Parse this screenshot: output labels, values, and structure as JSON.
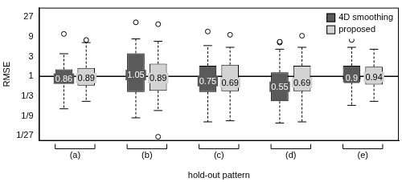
{
  "chart_data": {
    "type": "boxplot",
    "y_label": "RMSE",
    "x_label": "hold-out pattern",
    "categories": [
      "(a)",
      "(b)",
      "(c)",
      "(d)",
      "(e)"
    ],
    "series": [
      {
        "name": "4D smoothing",
        "color": "#5a5a5a",
        "whisker_low": [
          0.165,
          0.1,
          0.08,
          0.075,
          0.2
        ],
        "q1": [
          0.76,
          0.42,
          0.42,
          0.25,
          0.72
        ],
        "median": [
          0.86,
          1.05,
          0.75,
          0.55,
          0.9
        ],
        "q3": [
          1.47,
          3.6,
          1.8,
          1.25,
          1.8
        ],
        "whisker_high": [
          3.5,
          8,
          5.5,
          4.5,
          5
        ],
        "outliers": [
          [
            10.5
          ],
          [
            20
          ],
          [
            12
          ],
          [
            6.5,
            6.8
          ],
          [
            7.5
          ]
        ]
      },
      {
        "name": "proposed",
        "color": "#d3d3d3",
        "whisker_low": [
          0.25,
          0.15,
          0.085,
          0.08,
          0.25
        ],
        "q1": [
          0.6,
          0.45,
          0.44,
          0.44,
          0.63
        ],
        "median": [
          0.89,
          0.89,
          0.69,
          0.69,
          0.94
        ],
        "q3": [
          1.6,
          2,
          1.9,
          1.8,
          1.7
        ],
        "whisker_high": [
          6.5,
          7,
          5,
          5,
          4.5
        ],
        "outliers": [
          [
            7.5
          ],
          [
            18,
            0.035
          ],
          [
            10
          ],
          [
            9.5
          ],
          []
        ]
      }
    ],
    "log": "y",
    "ylim": [
      0.028,
      45
    ],
    "yticks": [
      {
        "value": 0.037037,
        "label": "1/27"
      },
      {
        "value": 0.111111,
        "label": "1/9"
      },
      {
        "value": 0.333333,
        "label": "1/3"
      },
      1,
      3,
      9,
      27
    ],
    "grid": false,
    "reference_line": 1,
    "legend": "top right",
    "data_labels": true
  }
}
